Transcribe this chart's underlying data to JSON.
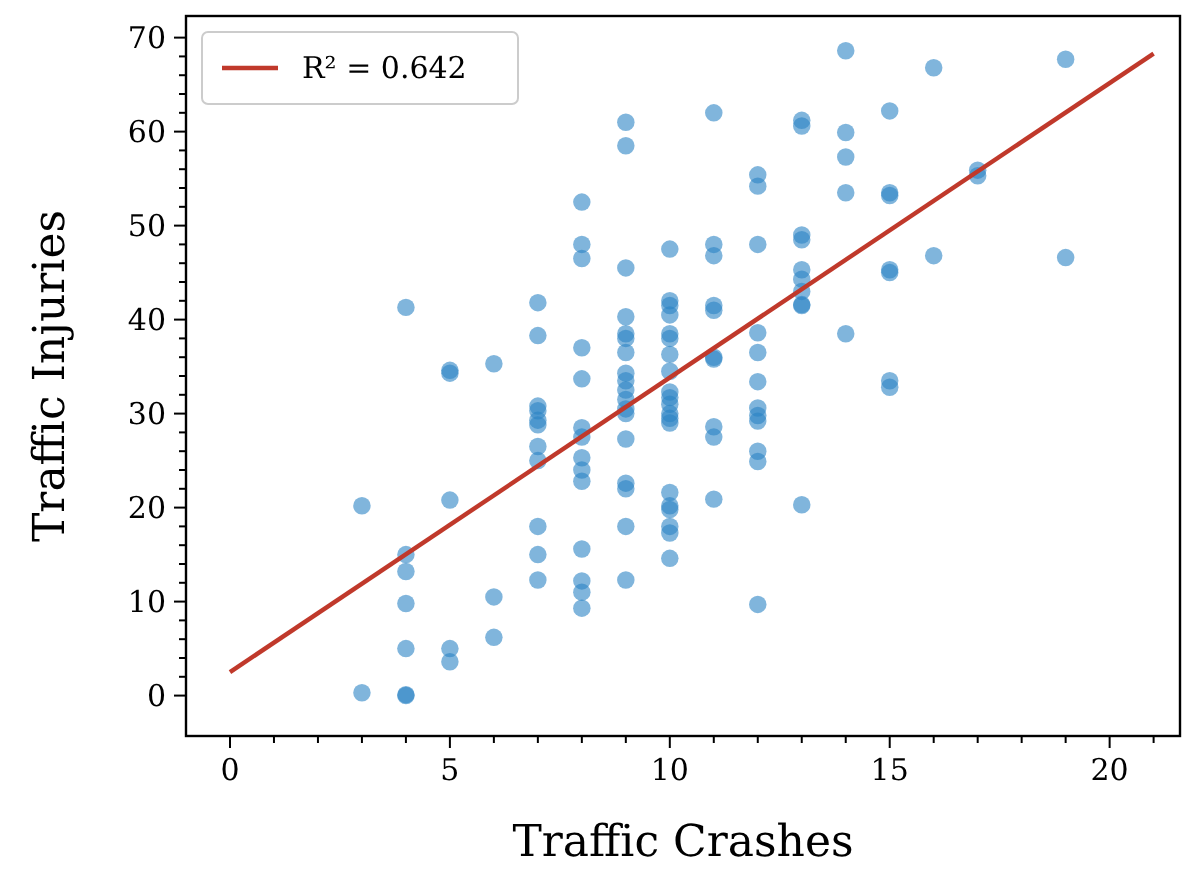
{
  "chart_data": {
    "type": "scatter",
    "xlabel": "Traffic Crashes",
    "ylabel": "Traffic Injuries",
    "xlim": [
      -1,
      21.6
    ],
    "ylim": [
      -4.3,
      72.3
    ],
    "xticks": [
      0,
      {
        "value": 1,
        "label": null
      },
      {
        "value": 2,
        "label": null
      },
      {
        "value": 3,
        "label": null
      },
      {
        "value": 4,
        "label": null
      },
      5,
      {
        "value": 6,
        "label": null
      },
      {
        "value": 7,
        "label": null
      },
      {
        "value": 8,
        "label": null
      },
      {
        "value": 9,
        "label": null
      },
      10,
      {
        "value": 11,
        "label": null
      },
      {
        "value": 12,
        "label": null
      },
      {
        "value": 13,
        "label": null
      },
      {
        "value": 14,
        "label": null
      },
      15,
      {
        "value": 16,
        "label": null
      },
      {
        "value": 17,
        "label": null
      },
      {
        "value": 18,
        "label": null
      },
      {
        "value": 19,
        "label": null
      },
      20,
      {
        "value": 21,
        "label": null
      }
    ],
    "yticks": [
      0,
      {
        "value": 2,
        "label": null
      },
      {
        "value": 4,
        "label": null
      },
      {
        "value": 6,
        "label": null
      },
      {
        "value": 8,
        "label": null
      },
      10,
      {
        "value": 12,
        "label": null
      },
      {
        "value": 14,
        "label": null
      },
      {
        "value": 16,
        "label": null
      },
      {
        "value": 18,
        "label": null
      },
      20,
      {
        "value": 22,
        "label": null
      },
      {
        "value": 24,
        "label": null
      },
      {
        "value": 26,
        "label": null
      },
      {
        "value": 28,
        "label": null
      },
      30,
      {
        "value": 32,
        "label": null
      },
      {
        "value": 34,
        "label": null
      },
      {
        "value": 36,
        "label": null
      },
      {
        "value": 38,
        "label": null
      },
      40,
      {
        "value": 42,
        "label": null
      },
      {
        "value": 44,
        "label": null
      },
      {
        "value": 46,
        "label": null
      },
      {
        "value": 48,
        "label": null
      },
      50,
      {
        "value": 52,
        "label": null
      },
      {
        "value": 54,
        "label": null
      },
      {
        "value": 56,
        "label": null
      },
      {
        "value": 58,
        "label": null
      },
      60,
      {
        "value": 62,
        "label": null
      },
      {
        "value": 64,
        "label": null
      },
      {
        "value": 66,
        "label": null
      },
      {
        "value": 68,
        "label": null
      },
      70
    ],
    "legend": "top left",
    "grid": false,
    "marker": "circle",
    "series": [
      {
        "color": "#2b83c4",
        "x": [
          3,
          3,
          4,
          4,
          4,
          4,
          4,
          4,
          4,
          5,
          5,
          5,
          5,
          5,
          6,
          6,
          6,
          7,
          7,
          7,
          7,
          7,
          7,
          7,
          7,
          7,
          7,
          7,
          8,
          8,
          8,
          8,
          8,
          8,
          8,
          8,
          8,
          8,
          8,
          8,
          8,
          8,
          9,
          9,
          9,
          9,
          9,
          9,
          9,
          9,
          9,
          9,
          9,
          9,
          9,
          9,
          9,
          9,
          9,
          9,
          10,
          10,
          10,
          10,
          10,
          10,
          10,
          10,
          10,
          10,
          10,
          10,
          10,
          10,
          10,
          10,
          10,
          10,
          10,
          10,
          11,
          11,
          11,
          11,
          11,
          11,
          11,
          11,
          11,
          11,
          12,
          12,
          12,
          12,
          12,
          12,
          12,
          12,
          12,
          12,
          12,
          12,
          13,
          13,
          13,
          13,
          13,
          13,
          13,
          13,
          13,
          13,
          14,
          14,
          14,
          14,
          14,
          15,
          15,
          15,
          15,
          15,
          15,
          15,
          16,
          16,
          17,
          17,
          19,
          19
        ],
        "values": [
          20.2,
          0.3,
          41.3,
          15,
          13.2,
          9.8,
          5,
          0.1,
          0,
          34.6,
          34.3,
          20.8,
          5,
          3.6,
          35.3,
          10.5,
          6.2,
          41.8,
          38.3,
          30.8,
          30.3,
          29.3,
          28.8,
          26.5,
          25,
          18,
          15,
          12.3,
          52.5,
          48,
          46.5,
          37,
          33.7,
          28.5,
          27.5,
          25.3,
          24,
          22.8,
          15.6,
          12.2,
          11,
          9.3,
          61,
          58.5,
          45.5,
          40.3,
          38.5,
          38,
          36.5,
          34.3,
          33.5,
          32.5,
          31.5,
          30.5,
          30,
          27.3,
          22.6,
          22,
          18,
          12.3,
          47.5,
          42,
          41.5,
          40.5,
          38.5,
          38,
          36.3,
          34.5,
          32.3,
          31.7,
          31,
          30,
          29.5,
          29,
          21.6,
          20.2,
          19.8,
          18,
          17.3,
          14.6,
          62,
          48,
          46.8,
          41.5,
          41,
          36,
          35.8,
          28.6,
          27.5,
          20.9,
          55.4,
          54.2,
          48,
          38.6,
          36.5,
          33.4,
          30.6,
          29.8,
          29.2,
          26,
          24.9,
          9.7,
          61.2,
          60.6,
          49,
          48.5,
          45.3,
          44.3,
          43,
          41.6,
          41.5,
          20.3,
          68.6,
          59.9,
          57.3,
          53.5,
          38.5,
          62.2,
          53.5,
          53.2,
          45.3,
          45,
          33.5,
          32.8,
          66.8,
          46.8,
          55.9,
          55.3,
          67.7,
          46.6
        ]
      },
      {
        "type": "line",
        "name": "R² = 0.642",
        "color": "#c0392b",
        "x": [
          0,
          21
        ],
        "values": [
          2.5,
          68.3
        ],
        "marker": "none",
        "line_style": "solid"
      }
    ]
  }
}
